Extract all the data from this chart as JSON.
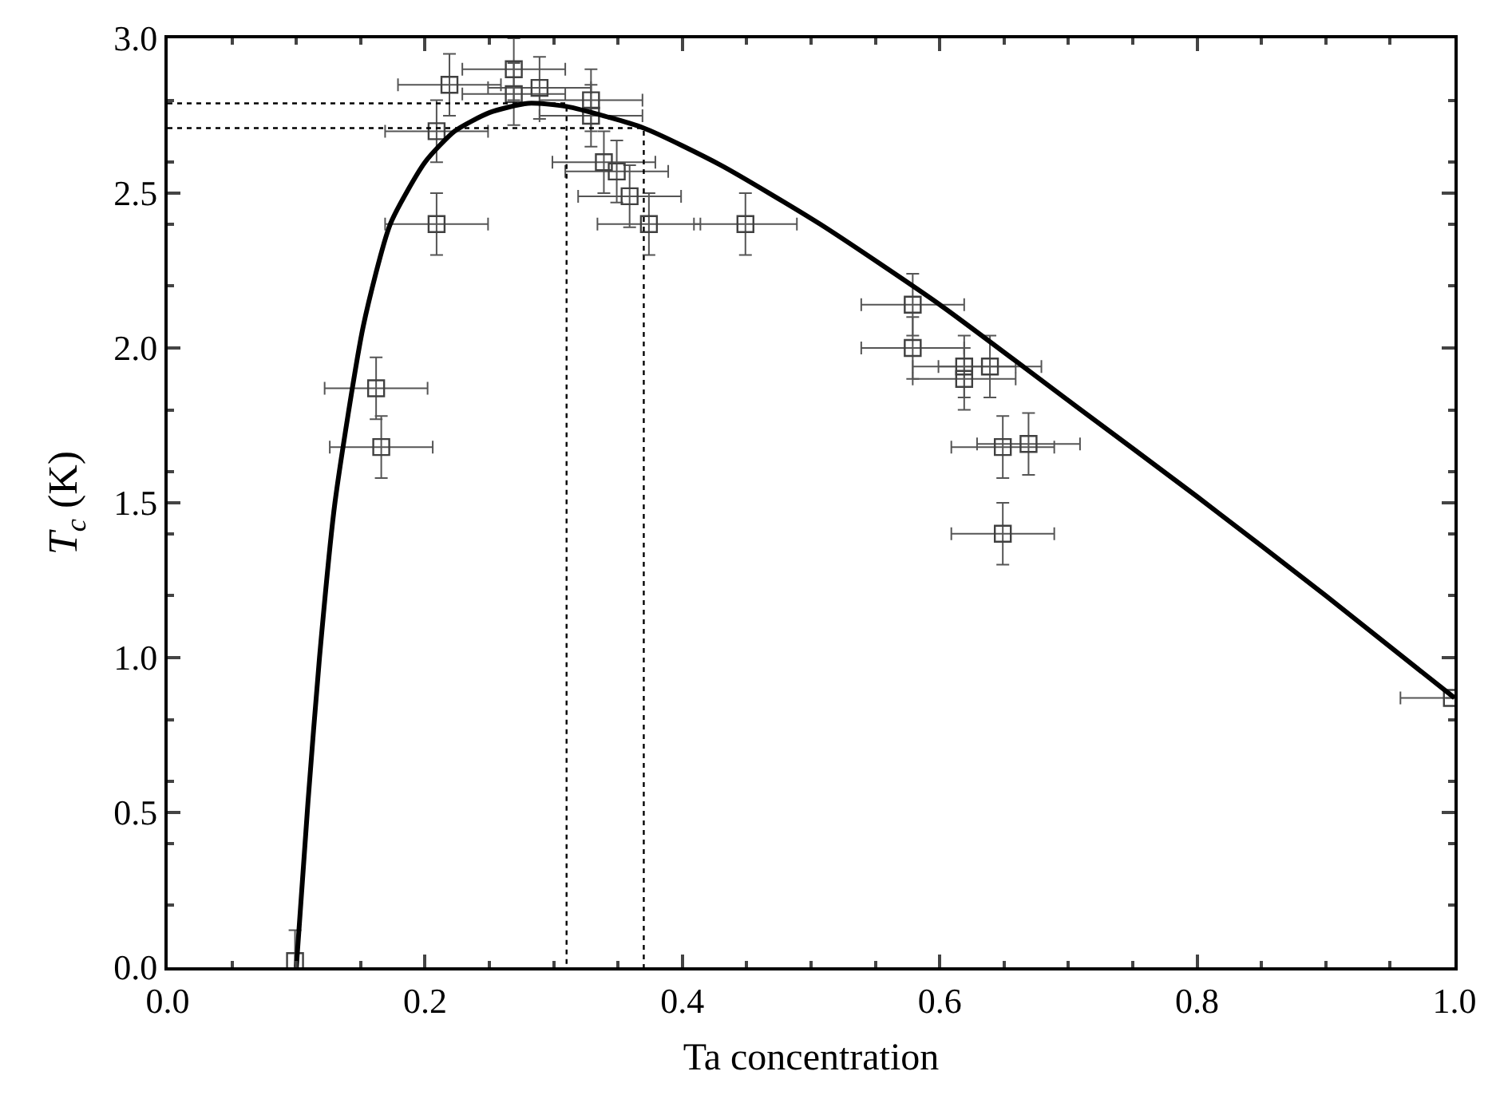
{
  "chart_data": {
    "type": "scatter",
    "xlabel": "Ta concentration",
    "ylabel": "T$_{c}$ (K)",
    "xlim": [
      0,
      1
    ],
    "ylim": [
      0,
      3
    ],
    "xticks": [
      {
        "value": 0,
        "label": "0.0"
      },
      0.2,
      0.4,
      0.6,
      0.8,
      {
        "value": 1,
        "label": "1.0"
      }
    ],
    "yticks": [
      {
        "value": 0,
        "label": "0.0"
      },
      0.5,
      {
        "value": 1,
        "label": "1.0"
      },
      1.5,
      {
        "value": 2,
        "label": "2.0"
      },
      2.5,
      {
        "value": 3,
        "label": "3.0"
      }
    ],
    "series": [
      {
        "color": "#404040",
        "marker": "square",
        "x": [
          0.219,
          0.269,
          0.269,
          0.289,
          0.329,
          0.329,
          0.209,
          0.209,
          0.339,
          0.349,
          0.359,
          0.374,
          0.449,
          0.162,
          0.166,
          0.579,
          0.579,
          0.619,
          0.619,
          0.639,
          0.649,
          0.669,
          0.649,
          0.998,
          0.099
        ],
        "values": [
          2.85,
          2.9,
          2.82,
          2.84,
          2.8,
          2.75,
          2.7,
          2.4,
          2.6,
          2.57,
          2.49,
          2.4,
          2.4,
          1.87,
          1.68,
          2.14,
          2.0,
          1.94,
          1.9,
          1.94,
          1.68,
          1.69,
          1.4,
          0.87,
          0.02
        ],
        "xerrors": [
          0.04,
          0.04,
          0.04,
          0.04,
          0.04,
          0.04,
          0.04,
          0.04,
          0.04,
          0.04,
          0.04,
          0.04,
          0.04,
          0.04,
          0.04,
          0.04,
          0.04,
          0.04,
          0.04,
          0.04,
          0.04,
          0.04,
          0.04,
          0.04,
          null
        ],
        "errors": [
          0.1,
          0.1,
          0.1,
          0.1,
          0.1,
          0.1,
          0.1,
          0.1,
          0.1,
          0.1,
          0.1,
          0.1,
          0.1,
          0.1,
          0.1,
          0.1,
          0.1,
          0.1,
          0.1,
          0.1,
          0.1,
          0.1,
          0.1,
          null,
          0.1
        ]
      },
      {
        "type": "line",
        "color": "#000000",
        "line_style": "solid",
        "x": [
          0.1,
          0.109,
          0.118,
          0.13,
          0.152,
          0.173,
          0.2,
          0.223,
          0.25,
          0.28,
          0.31,
          0.37,
          0.43,
          0.507,
          0.6,
          0.7,
          0.8,
          0.9,
          1.0
        ],
        "values": [
          0,
          0.53,
          1.0,
          1.5,
          2.07,
          2.4,
          2.6,
          2.7,
          2.76,
          2.79,
          2.78,
          2.71,
          2.59,
          2.4,
          2.14,
          1.83,
          1.52,
          1.2,
          0.87
        ]
      },
      {
        "type": "line",
        "color": "#000000",
        "line_style": "dotted",
        "x": [
          0,
          0.31,
          0.31
        ],
        "values": [
          2.79,
          2.79,
          0
        ]
      },
      {
        "type": "line",
        "color": "#000000",
        "line_style": "dotted",
        "x": [
          0,
          0.37,
          0.37
        ],
        "values": [
          2.71,
          2.71,
          0
        ]
      }
    ]
  }
}
